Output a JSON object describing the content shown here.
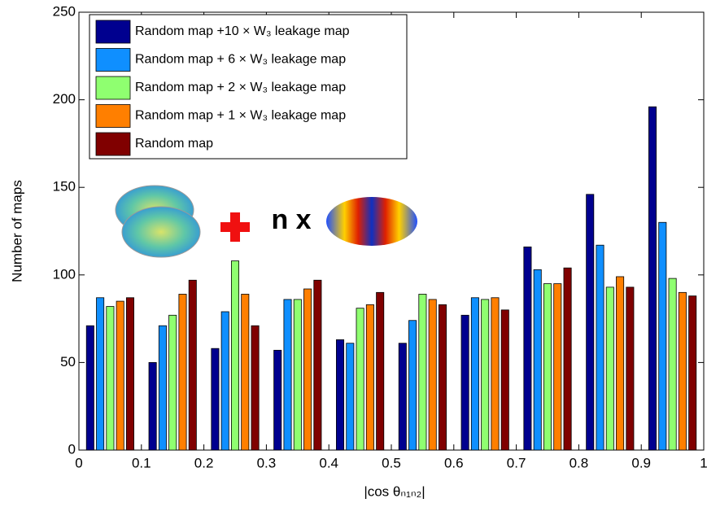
{
  "chart_data": {
    "type": "bar",
    "xlabel": "|cos θₙ₁ₙ₂|",
    "ylabel": "Number of maps",
    "annotation": "n x",
    "x": [
      0.05,
      0.15,
      0.25,
      0.35,
      0.45,
      0.55,
      0.65,
      0.75,
      0.85,
      0.95
    ],
    "series": [
      {
        "name": "Random map +10 × W₃ leakage map",
        "color": "#00008f",
        "values": [
          71,
          50,
          58,
          57,
          63,
          61,
          77,
          116,
          146,
          196
        ]
      },
      {
        "name": "Random map + 6 × W₃ leakage map",
        "color": "#0f8fff",
        "values": [
          87,
          71,
          79,
          86,
          61,
          74,
          87,
          103,
          117,
          130
        ]
      },
      {
        "name": "Random map + 2 × W₃ leakage map",
        "color": "#8fff70",
        "values": [
          82,
          77,
          108,
          86,
          81,
          89,
          86,
          95,
          93,
          98
        ]
      },
      {
        "name": "Random map + 1 × W₃ leakage map",
        "color": "#ff7f00",
        "values": [
          85,
          89,
          89,
          92,
          83,
          86,
          87,
          95,
          99,
          90
        ]
      },
      {
        "name": "Random map",
        "color": "#800000",
        "values": [
          87,
          97,
          71,
          97,
          90,
          83,
          80,
          104,
          93,
          88
        ]
      }
    ],
    "xlim": [
      0,
      1
    ],
    "xticks": [
      0,
      0.1,
      0.2,
      0.3,
      0.4,
      0.5,
      0.6,
      0.7,
      0.8,
      0.9,
      1
    ],
    "ylim": [
      0,
      250
    ],
    "yticks": [
      0,
      50,
      100,
      150,
      200,
      250
    ],
    "legend": "upper-left"
  }
}
